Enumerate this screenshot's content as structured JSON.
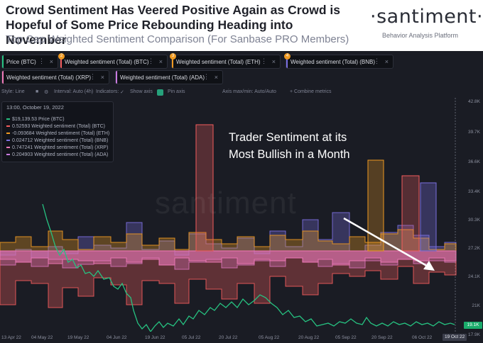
{
  "header": {
    "headline": "Crowd Sentiment Has Veered Positive Again as Crowd is Hopeful of Some Price Rebounding Heading into November",
    "subtitle": "Top Cap Weighted Sentiment Comparison (For Sanbase PRO Members)",
    "brand": "·santiment·",
    "brand_tagline": "Behavior Analysis Platform"
  },
  "metrics": [
    {
      "label": "Price (BTC)",
      "color": "#26c281"
    },
    {
      "label": "Weighted sentiment (Total) (BTC)",
      "color": "#f25c5c",
      "badge": "2"
    },
    {
      "label": "Weighted sentiment (Total) (ETH)",
      "color": "#f09a22",
      "badge": "3"
    },
    {
      "label": "Weighted sentiment (Total) (BNB)",
      "color": "#7b6fe0",
      "badge": "4"
    },
    {
      "label": "Weighted sentiment (Total) (XRP)",
      "color": "#f07ab8"
    },
    {
      "label": "Weighted sentiment (Total) (ADA)",
      "color": "#c97be0"
    }
  ],
  "toolbar": {
    "style": "Style: Line",
    "interval": "Interval: Auto (4h)",
    "indicators": "Indicators:",
    "show_axis": "Show axis",
    "pin_axis": "Pin axis",
    "axis_minmax": "Axis max/min: Auto/Auto",
    "combine": "+ Combine metrics"
  },
  "tooltip": {
    "date": "13:00, October 19, 2022",
    "rows": [
      {
        "value": "$19,139.53",
        "label": "Price (BTC)",
        "color": "#26c281"
      },
      {
        "value": "0.52593",
        "label": "Weighted sentiment (Total) (BTC)",
        "color": "#f25c5c"
      },
      {
        "value": "-0.093684",
        "label": "Weighted sentiment (Total) (ETH)",
        "color": "#f09a22"
      },
      {
        "value": "0.024712",
        "label": "Weighted sentiment (Total) (BNB)",
        "color": "#7b6fe0"
      },
      {
        "value": "0.747241",
        "label": "Weighted sentiment (Total) (XRP)",
        "color": "#f07ab8"
      },
      {
        "value": "0.204903",
        "label": "Weighted sentiment (Total) (ADA)",
        "color": "#c97be0"
      }
    ]
  },
  "annotation": {
    "line1": "Trader Sentiment at its",
    "line2": "Most Bullish in a Month"
  },
  "watermark": "santiment",
  "y_axis": {
    "ticks": [
      "42.8K",
      "39.7K",
      "36.6K",
      "33.4K",
      "30.3K",
      "27.2K",
      "24.1K",
      "21K",
      "17.9K"
    ],
    "current": "19.1K"
  },
  "x_axis": {
    "ticks": [
      "13 Apr 22",
      "04 May 22",
      "19 May 22",
      "04 Jun 22",
      "19 Jun 22",
      "05 Jul 22",
      "20 Jul 22",
      "05 Aug 22",
      "20 Aug 22",
      "05 Sep 22",
      "20 Sep 22",
      "06 Oct 22"
    ],
    "current": "19 Oct 22"
  },
  "colors": {
    "price": "#26c281",
    "btc": "#f25c5c",
    "eth": "#f09a22",
    "bnb": "#7b6fe0",
    "xrp": "#f07ab8",
    "ada": "#c97be0",
    "panel_bg": "#1a1c24"
  }
}
